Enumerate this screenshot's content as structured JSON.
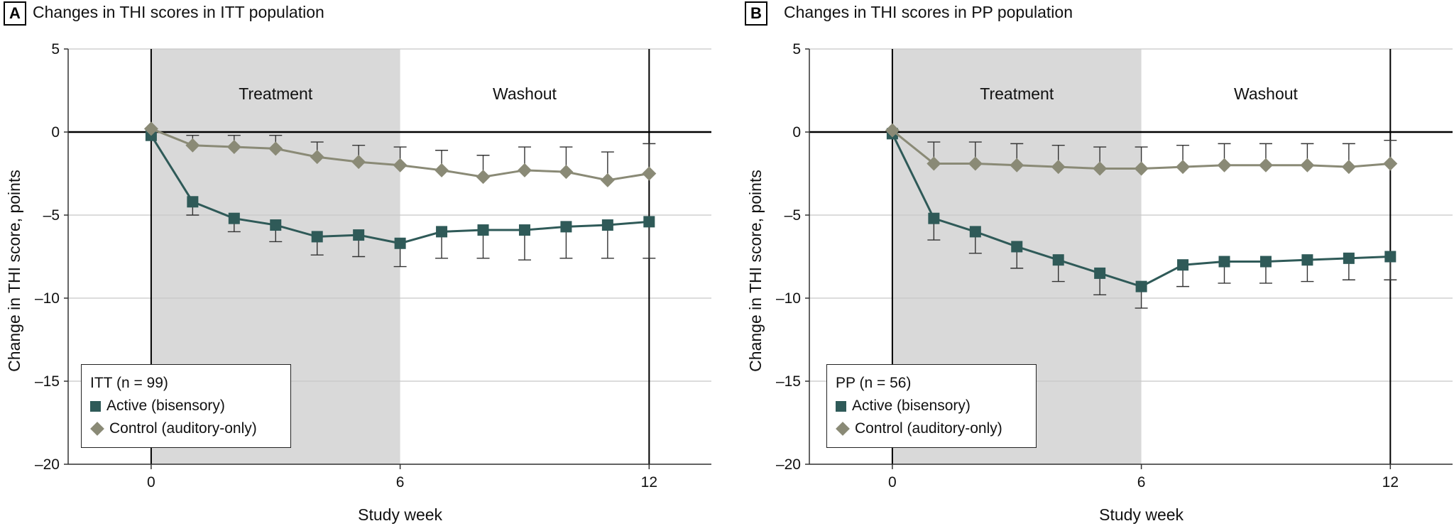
{
  "chart_data": [
    {
      "panel_label": "A",
      "title": "Changes in THI scores in ITT population",
      "type": "line",
      "xlabel": "Study week",
      "ylabel": "Change in THI score, points",
      "xlim": [
        -2,
        13.5
      ],
      "ylim": [
        -20,
        5
      ],
      "xticks": [
        0,
        6,
        12
      ],
      "yticks": [
        5,
        0,
        -5,
        -10,
        -15,
        -20
      ],
      "grid": true,
      "shaded_region": [
        0,
        6
      ],
      "region_labels": [
        {
          "text": "Treatment",
          "x": 3,
          "y": 2.3
        },
        {
          "text": "Washout",
          "x": 9,
          "y": 2.3
        }
      ],
      "vertical_lines": [
        0,
        12
      ],
      "legend": {
        "title": "ITT (n = 99)",
        "location": "lower-left"
      },
      "series": [
        {
          "name": "Active (bisensory)",
          "marker": "square",
          "color": "#2f5a58",
          "x": [
            0,
            1,
            2,
            3,
            4,
            5,
            6,
            7,
            8,
            9,
            10,
            11,
            12
          ],
          "y": [
            -0.2,
            -4.2,
            -5.2,
            -5.6,
            -6.3,
            -6.2,
            -6.7,
            -6.0,
            -5.9,
            -5.9,
            -5.7,
            -5.6,
            -5.4
          ],
          "err_lower": [
            0,
            0.8,
            0.8,
            1.0,
            1.1,
            1.3,
            1.4,
            1.6,
            1.7,
            1.8,
            1.9,
            2.0,
            2.2
          ],
          "err_upper": [
            0,
            0,
            0,
            0,
            0,
            0,
            0,
            0,
            0,
            0,
            0,
            0,
            0
          ]
        },
        {
          "name": "Control (auditory-only)",
          "marker": "diamond",
          "color": "#8a8a76",
          "x": [
            0,
            1,
            2,
            3,
            4,
            5,
            6,
            7,
            8,
            9,
            10,
            11,
            12
          ],
          "y": [
            0.2,
            -0.8,
            -0.9,
            -1.0,
            -1.5,
            -1.8,
            -2.0,
            -2.3,
            -2.7,
            -2.3,
            -2.4,
            -2.9,
            -2.5
          ],
          "err_lower": [
            0,
            0,
            0,
            0,
            0,
            0,
            0,
            0,
            0,
            0,
            0,
            0,
            0
          ],
          "err_upper": [
            0,
            0.6,
            0.7,
            0.8,
            0.9,
            1.0,
            1.1,
            1.2,
            1.3,
            1.4,
            1.5,
            1.7,
            1.8
          ]
        }
      ]
    },
    {
      "panel_label": "B",
      "title": "Changes in THI scores in PP population",
      "type": "line",
      "xlabel": "Study week",
      "ylabel": "Change in THI score, points",
      "xlim": [
        -2,
        13.5
      ],
      "ylim": [
        -20,
        5
      ],
      "xticks": [
        0,
        6,
        12
      ],
      "yticks": [
        5,
        0,
        -5,
        -10,
        -15,
        -20
      ],
      "grid": true,
      "shaded_region": [
        0,
        6
      ],
      "region_labels": [
        {
          "text": "Treatment",
          "x": 3,
          "y": 2.3
        },
        {
          "text": "Washout",
          "x": 9,
          "y": 2.3
        }
      ],
      "vertical_lines": [
        0,
        12
      ],
      "legend": {
        "title": "PP (n = 56)",
        "location": "lower-left"
      },
      "series": [
        {
          "name": "Active (bisensory)",
          "marker": "square",
          "color": "#2f5a58",
          "x": [
            0,
            1,
            2,
            3,
            4,
            5,
            6,
            7,
            8,
            9,
            10,
            11,
            12
          ],
          "y": [
            -0.1,
            -5.2,
            -6.0,
            -6.9,
            -7.7,
            -8.5,
            -9.3,
            -8.0,
            -7.8,
            -7.8,
            -7.7,
            -7.6,
            -7.5
          ],
          "err_lower": [
            0,
            1.3,
            1.3,
            1.3,
            1.3,
            1.3,
            1.3,
            1.3,
            1.3,
            1.3,
            1.3,
            1.3,
            1.4
          ],
          "err_upper": [
            0,
            0,
            0,
            0,
            0,
            0,
            0,
            0,
            0,
            0,
            0,
            0,
            0
          ]
        },
        {
          "name": "Control (auditory-only)",
          "marker": "diamond",
          "color": "#8a8a76",
          "x": [
            0,
            1,
            2,
            3,
            4,
            5,
            6,
            7,
            8,
            9,
            10,
            11,
            12
          ],
          "y": [
            0.1,
            -1.9,
            -1.9,
            -2.0,
            -2.1,
            -2.2,
            -2.2,
            -2.1,
            -2.0,
            -2.0,
            -2.0,
            -2.1,
            -1.9
          ],
          "err_lower": [
            0,
            0,
            0,
            0,
            0,
            0,
            0,
            0,
            0,
            0,
            0,
            0,
            0
          ],
          "err_upper": [
            0,
            1.3,
            1.3,
            1.3,
            1.3,
            1.3,
            1.3,
            1.3,
            1.3,
            1.3,
            1.3,
            1.4,
            1.4
          ]
        }
      ]
    }
  ]
}
